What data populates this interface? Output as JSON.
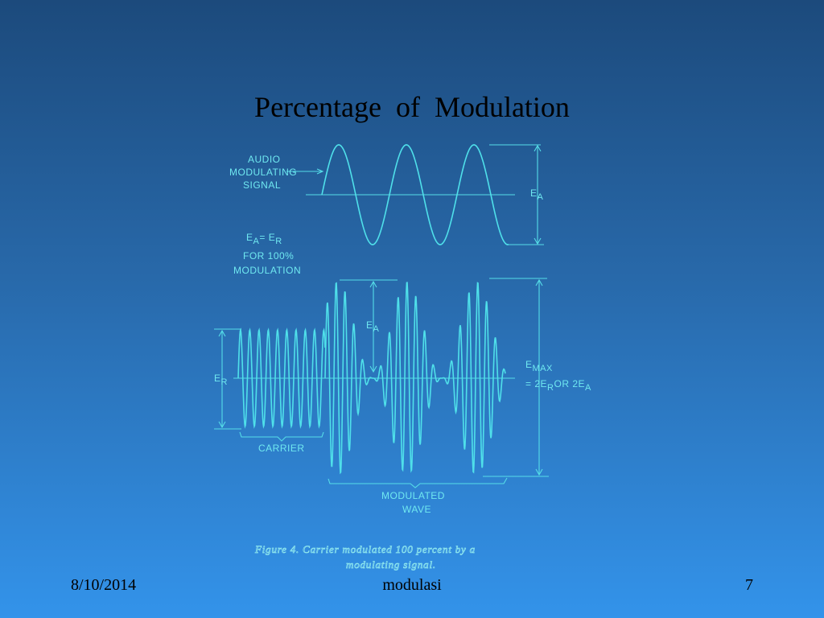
{
  "slide": {
    "title": "Percentage  of  Modulation",
    "date": "8/10/2014",
    "footer_center": "modulasi",
    "page_number": "7"
  },
  "diagram": {
    "audio_label": [
      "AUDIO",
      "MODULATING",
      "SIGNAL"
    ],
    "ea_main": "E",
    "ea_sub": "A",
    "eq_line": {
      "e1": "E",
      "s1": "A",
      "mid": "= E",
      "s2": "R"
    },
    "note_lines": [
      "FOR 100%",
      "MODULATION"
    ],
    "er_main": "E",
    "er_sub": "R",
    "emax_main": "E",
    "emax_sub": "MAX",
    "emax_line2": {
      "a": "= 2E",
      "b": "R",
      "c": "OR 2E",
      "d": "A"
    },
    "carrier_label": "CARRIER",
    "modulated_label": [
      "MODULATED",
      "WAVE"
    ],
    "caption": [
      "Figure 4.  Carrier modulated 100 percent by a",
      "modulating signal."
    ]
  },
  "colors": {
    "line": "#4fe0ea",
    "label": "#6fe8f0",
    "title": "#000000"
  }
}
